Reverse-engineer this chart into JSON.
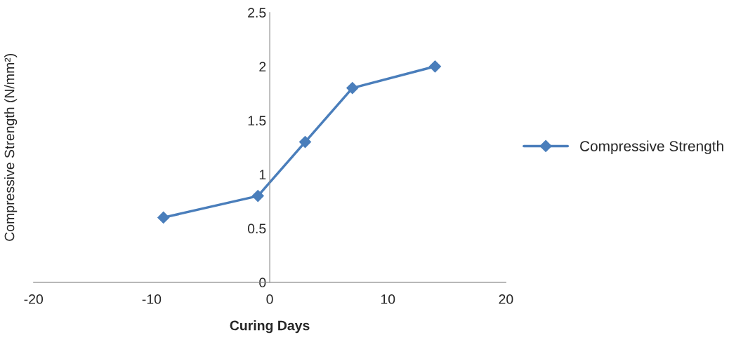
{
  "chart_data": {
    "type": "line",
    "xlabel": "Curing Days",
    "ylabel": "Compressive Strength (N/mm²)",
    "x": [
      -9,
      -1,
      3,
      7,
      14
    ],
    "series": [
      {
        "name": "Compressive Strength",
        "color": "#4a7ebb",
        "values": [
          0.6,
          0.8,
          1.3,
          1.8,
          2.0
        ]
      }
    ],
    "xlim": [
      -20,
      20
    ],
    "xticks": [
      -20,
      -10,
      0,
      10,
      20
    ],
    "ylim": [
      0,
      2.5
    ],
    "yticks": [
      0,
      {
        "value": 0.5,
        "label": "0.5"
      },
      1,
      {
        "value": 1.5,
        "label": "1.5"
      },
      2,
      {
        "value": 2.5,
        "label": "2.5"
      }
    ],
    "marker": "diamond",
    "line_style": "solid",
    "grid": false,
    "legend": "right"
  }
}
